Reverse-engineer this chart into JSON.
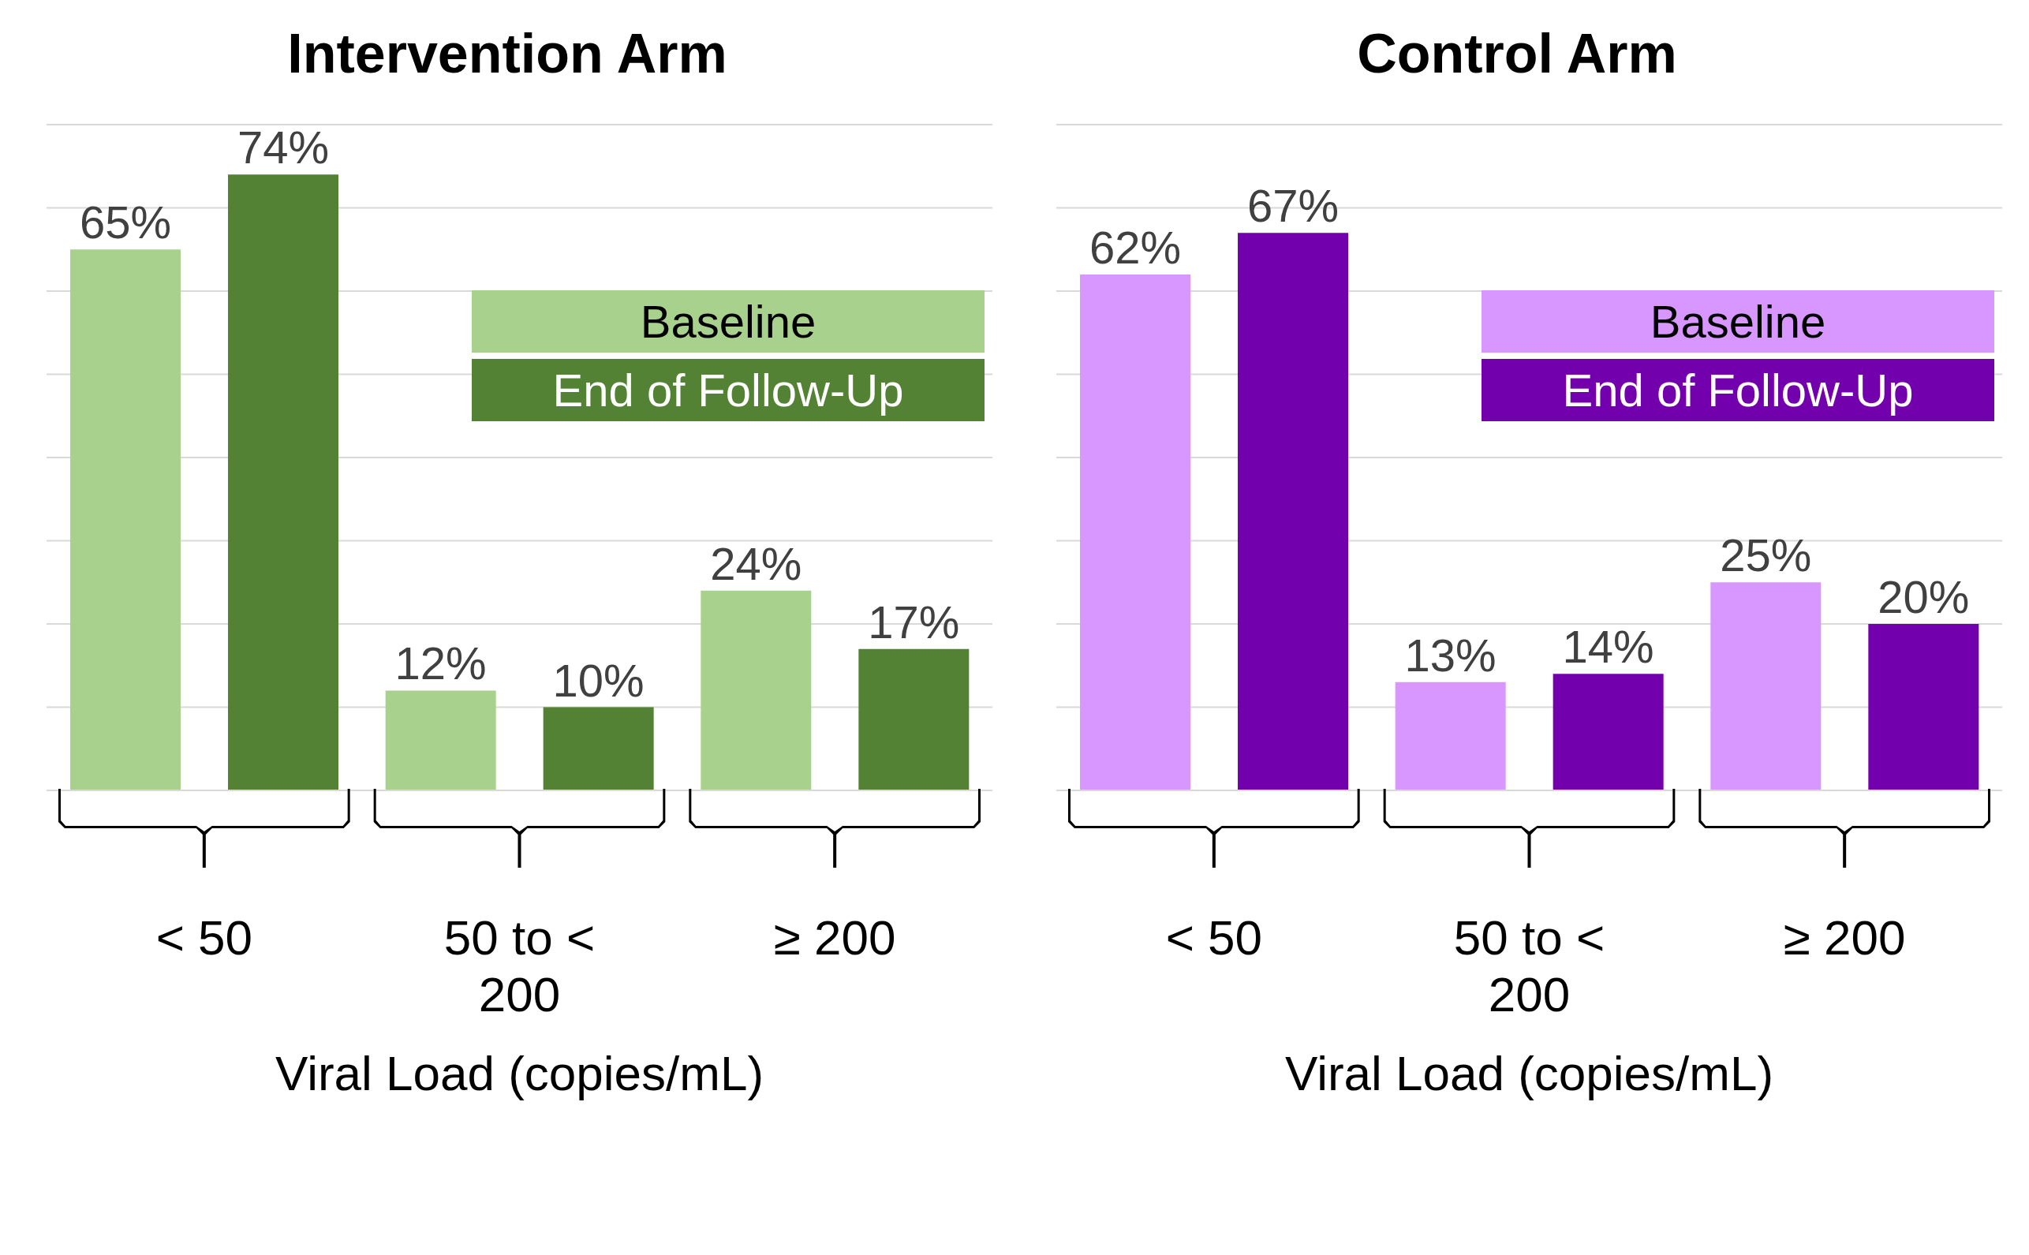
{
  "chart_data": [
    {
      "type": "bar",
      "title": "Intervention Arm",
      "xlabel": "Viral Load (copies/mL)",
      "categories": [
        "< 50",
        "50 to < 200",
        "≥ 200"
      ],
      "series": [
        {
          "name": "Baseline",
          "color": "#a9d18e",
          "values": [
            65,
            12,
            24
          ],
          "value_labels": [
            "65%",
            "12%",
            "24%"
          ]
        },
        {
          "name": "End of Follow-Up",
          "color": "#548235",
          "values": [
            74,
            10,
            17
          ],
          "value_labels": [
            "74%",
            "10%",
            "17%"
          ]
        }
      ],
      "ylim": [
        0,
        80
      ],
      "yticks": [
        0,
        10,
        20,
        30,
        40,
        50,
        60,
        70,
        80
      ],
      "grid": "y",
      "tick_labels": "x",
      "legend": "top right"
    },
    {
      "type": "bar",
      "title": "Control Arm",
      "xlabel": "Viral Load (copies/mL)",
      "categories": [
        "< 50",
        "50 to < 200",
        "≥ 200"
      ],
      "series": [
        {
          "name": "Baseline",
          "color": "#d896ff",
          "values": [
            62,
            13,
            25
          ],
          "value_labels": [
            "62%",
            "13%",
            "25%"
          ]
        },
        {
          "name": "End of Follow-Up",
          "color": "#7300ad",
          "values": [
            67,
            14,
            20
          ],
          "value_labels": [
            "67%",
            "14%",
            "20%"
          ]
        }
      ],
      "ylim": [
        0,
        80
      ],
      "yticks": [
        0,
        10,
        20,
        30,
        40,
        50,
        60,
        70,
        80
      ],
      "grid": "y",
      "tick_labels": "x",
      "legend": "top right"
    }
  ]
}
